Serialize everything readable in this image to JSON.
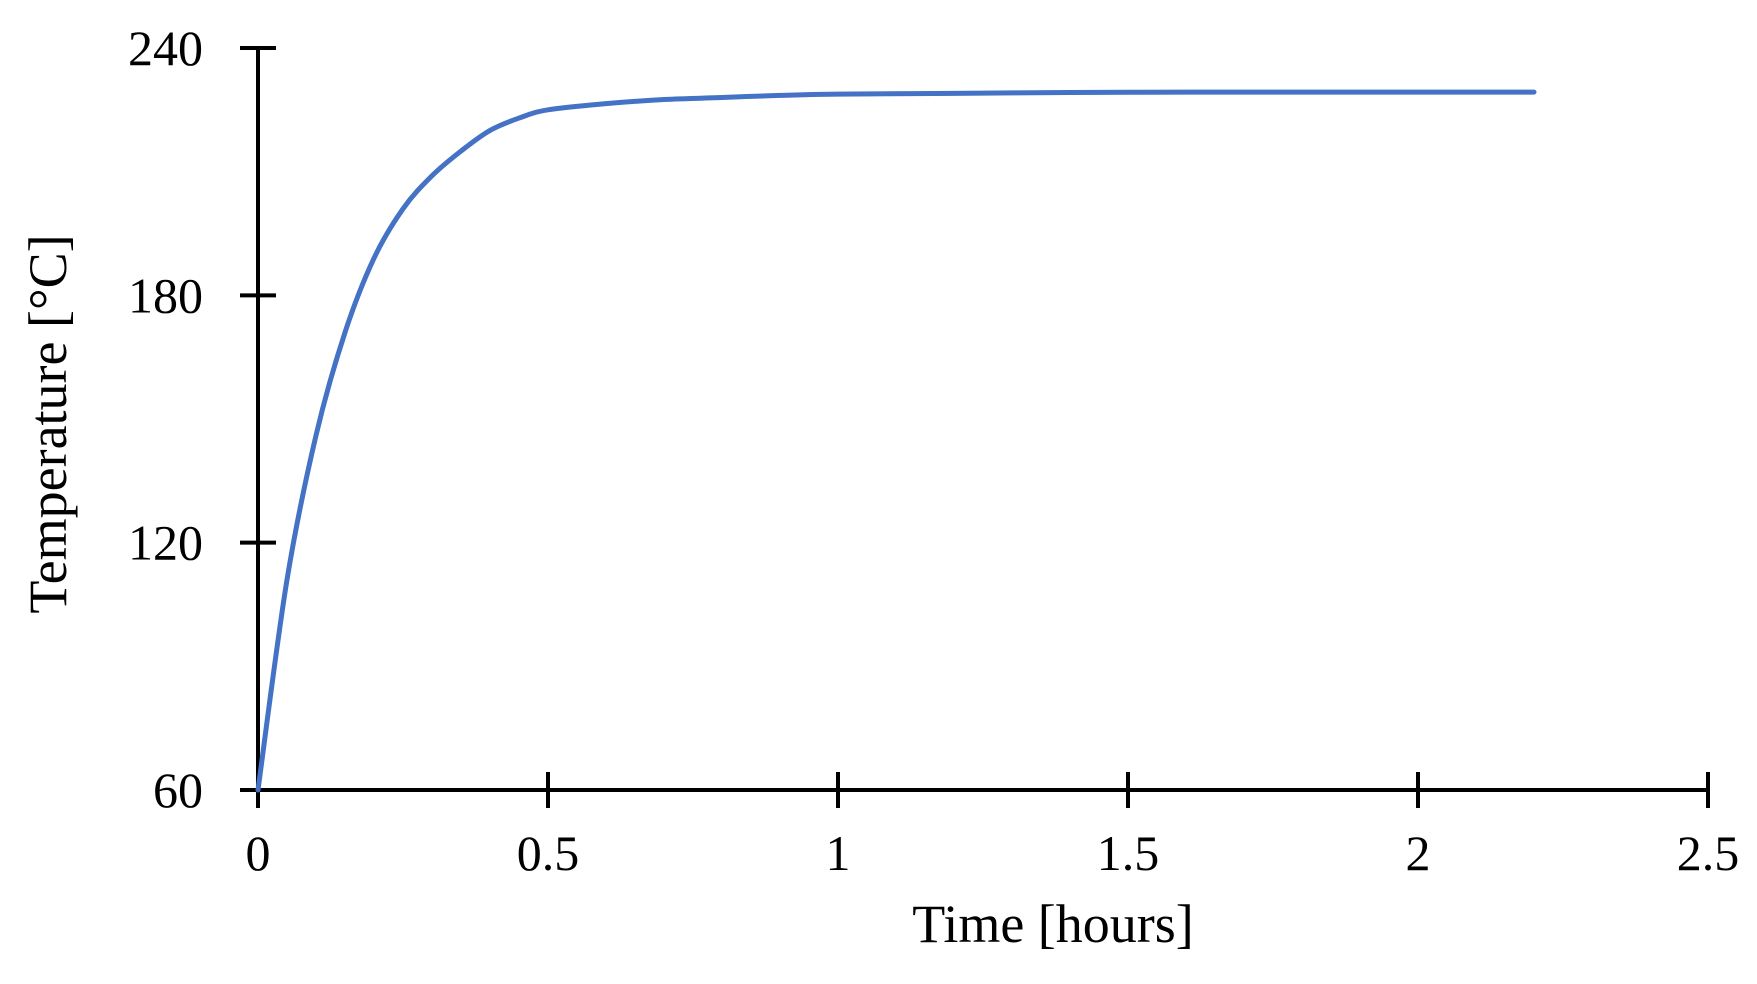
{
  "chart_data": {
    "type": "line",
    "title": "",
    "xlabel": "Time [hours]",
    "ylabel": "Temperature [°C]",
    "xlim": [
      0,
      2.5
    ],
    "ylim": [
      60,
      240
    ],
    "xticks": [
      0,
      0.5,
      1,
      1.5,
      2,
      2.5
    ],
    "xtick_labels": [
      "0",
      "0.5",
      "1",
      "1.5",
      "2",
      "2.5"
    ],
    "yticks": [
      60,
      120,
      180,
      240
    ],
    "ytick_labels": [
      "60",
      "120",
      "180",
      "240"
    ],
    "grid": false,
    "legend": "none",
    "colors": {
      "series": "#4472C4",
      "axis": "#000000"
    },
    "series": [
      {
        "x": [
          0,
          0.05,
          0.1,
          0.15,
          0.2,
          0.25,
          0.3,
          0.35,
          0.4,
          0.45,
          0.5,
          0.6,
          0.7,
          0.8,
          0.9,
          1.0,
          1.2,
          1.4,
          1.6,
          1.8,
          2.0,
          2.2
        ],
        "y": [
          60,
          111,
          146,
          171,
          189,
          201,
          209,
          215,
          220,
          223,
          225,
          226.5,
          227.5,
          228,
          228.5,
          228.8,
          229,
          229.2,
          229.3,
          229.3,
          229.3,
          229.3
        ]
      }
    ]
  }
}
